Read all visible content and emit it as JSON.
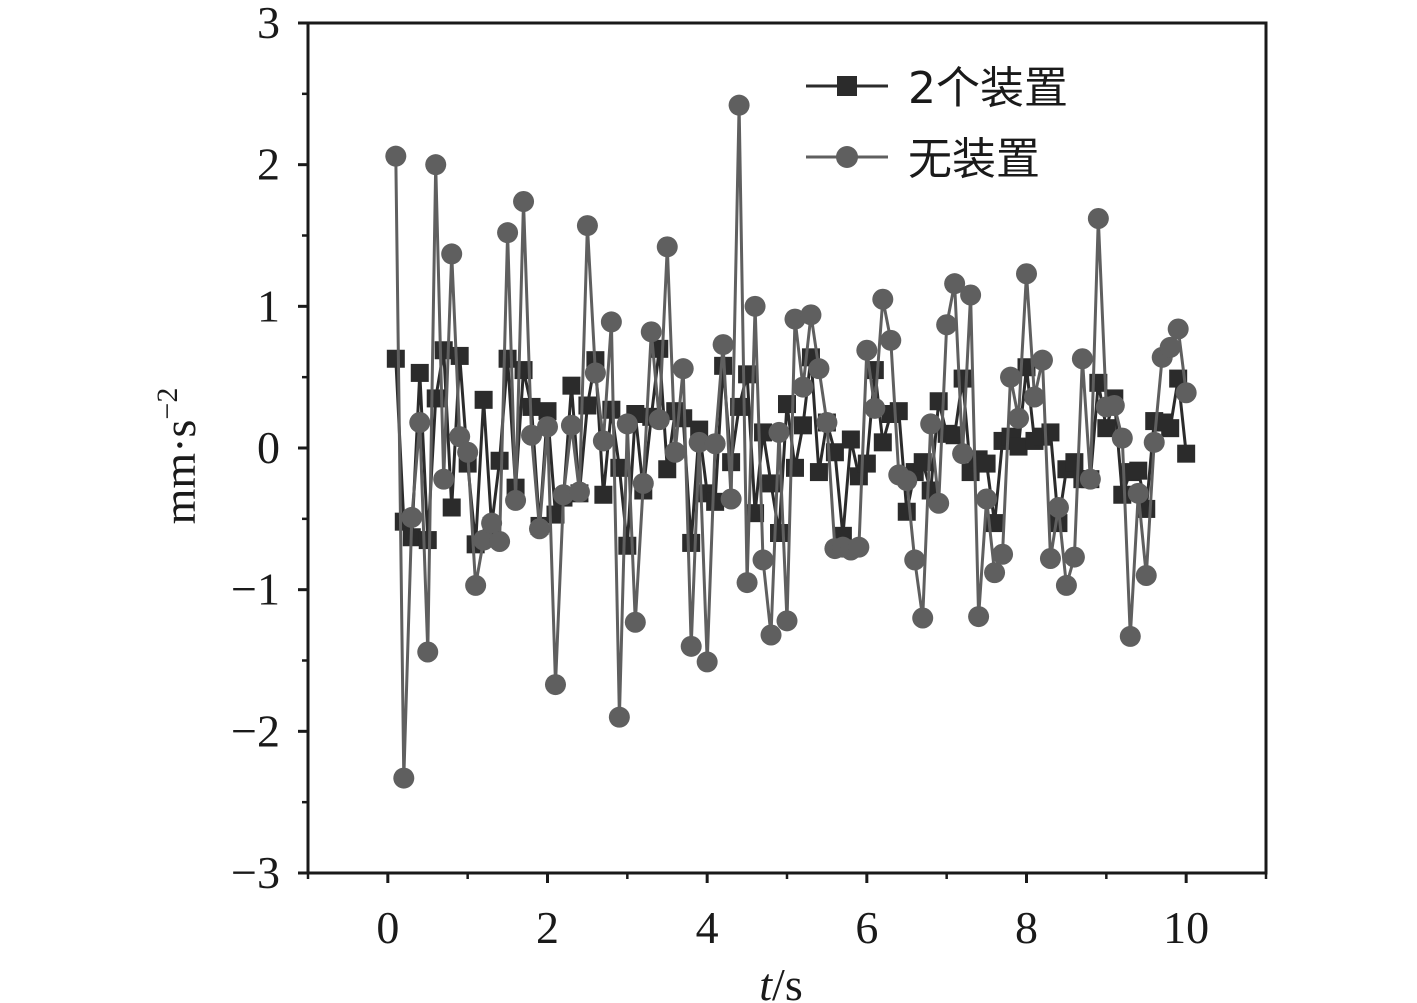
{
  "chart_data": {
    "type": "line",
    "xlabel": {
      "italic": "t",
      "rest": "/s"
    },
    "ylabel": {
      "base": "mm·s",
      "sup": "−2"
    },
    "xlim": [
      -1,
      11
    ],
    "ylim": [
      -3,
      3
    ],
    "xticks": [
      0,
      2,
      4,
      6,
      8,
      10
    ],
    "yticks": [
      -3,
      -2,
      -1,
      0,
      1,
      2,
      3
    ],
    "xtick_labels": [
      "0",
      "2",
      "4",
      "6",
      "8",
      "10"
    ],
    "ytick_labels": [
      "−3",
      "−2",
      "−1",
      "0",
      "1",
      "2",
      "3"
    ],
    "legend_position": "top-right",
    "grid": false,
    "series": [
      {
        "name": "2个装置",
        "marker": "square",
        "color": "#2b2b2b",
        "x": [
          0.1,
          0.2,
          0.3,
          0.4,
          0.5,
          0.6,
          0.7,
          0.8,
          0.9,
          1.0,
          1.1,
          1.2,
          1.3,
          1.4,
          1.5,
          1.6,
          1.7,
          1.8,
          1.9,
          2.0,
          2.1,
          2.2,
          2.3,
          2.4,
          2.5,
          2.6,
          2.7,
          2.8,
          2.9,
          3.0,
          3.1,
          3.2,
          3.3,
          3.4,
          3.5,
          3.6,
          3.7,
          3.8,
          3.9,
          4.0,
          4.1,
          4.2,
          4.3,
          4.4,
          4.5,
          4.6,
          4.7,
          4.8,
          4.9,
          5.0,
          5.1,
          5.2,
          5.3,
          5.4,
          5.5,
          5.6,
          5.7,
          5.8,
          5.9,
          6.0,
          6.1,
          6.2,
          6.3,
          6.4,
          6.5,
          6.6,
          6.7,
          6.8,
          6.9,
          7.0,
          7.1,
          7.2,
          7.3,
          7.4,
          7.5,
          7.6,
          7.7,
          7.8,
          7.9,
          8.0,
          8.1,
          8.2,
          8.3,
          8.4,
          8.5,
          8.6,
          8.7,
          8.8,
          8.9,
          9.0,
          9.1,
          9.2,
          9.3,
          9.4,
          9.5,
          9.6,
          9.7,
          9.8,
          9.9,
          10.0
        ],
        "y": [
          0.63,
          -0.52,
          -0.63,
          0.53,
          -0.65,
          0.35,
          0.69,
          -0.42,
          0.65,
          -0.11,
          -0.68,
          0.34,
          -0.55,
          -0.09,
          0.63,
          -0.28,
          0.55,
          0.29,
          -0.55,
          0.26,
          -0.47,
          -0.35,
          0.44,
          -0.32,
          0.3,
          0.62,
          -0.33,
          0.27,
          -0.14,
          -0.69,
          0.24,
          -0.3,
          0.22,
          0.7,
          -0.15,
          0.26,
          0.21,
          -0.67,
          0.13,
          -0.32,
          -0.38,
          0.58,
          -0.1,
          0.29,
          0.52,
          -0.46,
          0.11,
          -0.25,
          -0.6,
          0.31,
          -0.14,
          0.16,
          0.64,
          -0.17,
          0.18,
          -0.03,
          -0.62,
          0.06,
          -0.2,
          -0.11,
          0.55,
          0.04,
          0.24,
          0.26,
          -0.45,
          -0.17,
          -0.1,
          -0.3,
          0.33,
          0.1,
          0.09,
          0.49,
          -0.17,
          -0.08,
          -0.11,
          -0.53,
          0.05,
          0.08,
          0.01,
          0.57,
          0.05,
          0.08,
          0.11,
          -0.53,
          -0.15,
          -0.1,
          -0.22,
          -0.22,
          0.46,
          0.14,
          0.35,
          -0.33,
          -0.17,
          -0.16,
          -0.43,
          0.19,
          0.18,
          0.14,
          0.49,
          -0.04
        ]
      },
      {
        "name": "无装置",
        "marker": "circle",
        "color": "#5f5f5f",
        "x": [
          0.1,
          0.2,
          0.3,
          0.4,
          0.5,
          0.6,
          0.7,
          0.8,
          0.9,
          1.0,
          1.1,
          1.2,
          1.3,
          1.4,
          1.5,
          1.6,
          1.7,
          1.8,
          1.9,
          2.0,
          2.1,
          2.2,
          2.3,
          2.4,
          2.5,
          2.6,
          2.7,
          2.8,
          2.9,
          3.0,
          3.1,
          3.2,
          3.3,
          3.4,
          3.5,
          3.6,
          3.7,
          3.8,
          3.9,
          4.0,
          4.1,
          4.2,
          4.3,
          4.4,
          4.5,
          4.6,
          4.7,
          4.8,
          4.9,
          5.0,
          5.1,
          5.2,
          5.3,
          5.4,
          5.5,
          5.6,
          5.7,
          5.8,
          5.9,
          6.0,
          6.1,
          6.2,
          6.3,
          6.4,
          6.5,
          6.6,
          6.7,
          6.8,
          6.9,
          7.0,
          7.1,
          7.2,
          7.3,
          7.4,
          7.5,
          7.6,
          7.7,
          7.8,
          7.9,
          8.0,
          8.1,
          8.2,
          8.3,
          8.4,
          8.5,
          8.6,
          8.7,
          8.8,
          8.9,
          9.0,
          9.1,
          9.2,
          9.3,
          9.4,
          9.5,
          9.6,
          9.7,
          9.8,
          9.9,
          10.0
        ],
        "y": [
          2.06,
          -2.33,
          -0.49,
          0.18,
          -1.44,
          2.0,
          -0.22,
          1.37,
          0.08,
          -0.03,
          -0.97,
          -0.65,
          -0.53,
          -0.66,
          1.52,
          -0.37,
          1.74,
          0.09,
          -0.57,
          0.15,
          -1.67,
          -0.33,
          0.16,
          -0.31,
          1.57,
          0.53,
          0.05,
          0.89,
          -1.9,
          0.17,
          -1.23,
          -0.25,
          0.82,
          0.2,
          1.42,
          -0.03,
          0.56,
          -1.4,
          0.04,
          -1.51,
          0.03,
          0.73,
          -0.36,
          2.42,
          -0.95,
          1.0,
          -0.79,
          -1.32,
          0.11,
          -1.22,
          0.91,
          0.43,
          0.94,
          0.56,
          0.18,
          -0.71,
          -0.7,
          -0.72,
          -0.7,
          0.69,
          0.28,
          1.05,
          0.76,
          -0.19,
          -0.23,
          -0.79,
          -1.2,
          0.17,
          -0.39,
          0.87,
          1.16,
          -0.04,
          1.08,
          -1.19,
          -0.36,
          -0.88,
          -0.75,
          0.5,
          0.21,
          1.23,
          0.36,
          0.62,
          -0.78,
          -0.42,
          -0.97,
          -0.77,
          0.63,
          -0.22,
          1.62,
          0.29,
          0.3,
          0.07,
          -1.33,
          -0.32,
          -0.9,
          0.04,
          0.64,
          0.71,
          0.84,
          0.39
        ]
      }
    ]
  }
}
